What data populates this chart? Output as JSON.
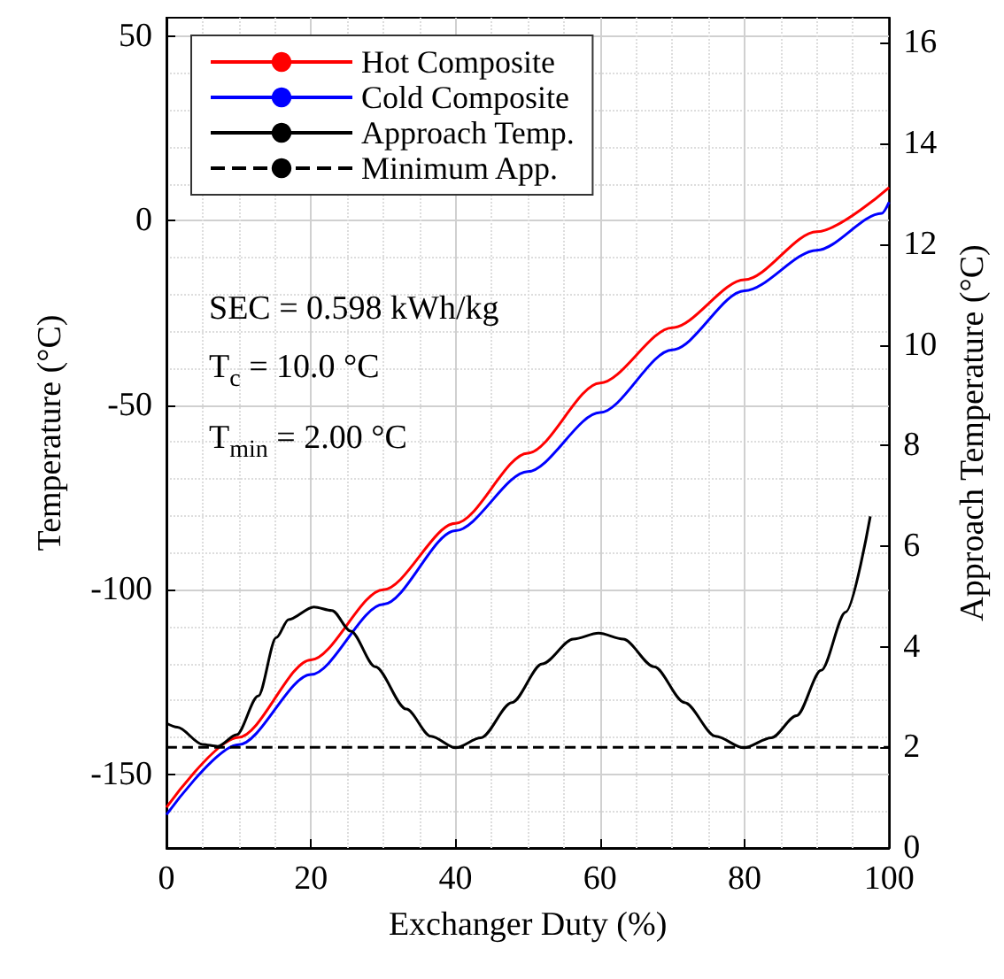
{
  "chart_data": {
    "type": "line",
    "xlabel": "Exchanger Duty (%)",
    "ylabel": "Temperature (°C)",
    "y2label": "Approach Temperature (°C)",
    "xlim": [
      0,
      100
    ],
    "xticks": [
      0,
      20,
      40,
      60,
      80,
      100
    ],
    "ylim": [
      -170,
      55
    ],
    "yticks": [
      -150,
      -100,
      -50,
      0,
      50
    ],
    "y2lim": [
      0,
      16.5
    ],
    "y2ticks": [
      0,
      2,
      4,
      6,
      8,
      10,
      12,
      14,
      16
    ],
    "grid": true,
    "legend": "top left",
    "marker": "none",
    "annotations": [
      "SEC = 0.598 kWh/kg",
      "T$_{c}$ =  10.0 °C",
      "T$_{min}$ =  2.00 °C"
    ],
    "series": [
      {
        "name": "Hot Composite",
        "color": "#ff0000",
        "x": [
          0,
          10,
          20,
          30,
          40,
          50,
          60,
          70,
          80,
          90,
          100
        ],
        "values": [
          -159,
          -140,
          -119,
          -100,
          -82,
          -63,
          -44,
          -29,
          -16,
          -3,
          9
        ]
      },
      {
        "name": "Cold Composite",
        "color": "#0000ff",
        "x": [
          0,
          10,
          20,
          30,
          40,
          50,
          60,
          70,
          80,
          90,
          99,
          100
        ],
        "values": [
          -161,
          -142,
          -123,
          -104,
          -84,
          -68,
          -52,
          -35,
          -19,
          -8,
          2,
          5
        ]
      },
      {
        "name": "Approach Temp.",
        "color": "#000000",
        "axis": "y2",
        "x": [
          0,
          1.5,
          5,
          7.1,
          9.7,
          12.7,
          15.2,
          16.9,
          20.4,
          22.9,
          25.5,
          28.9,
          33.2,
          36.6,
          40,
          43.5,
          47.8,
          52,
          56.3,
          59.8,
          63.2,
          67.5,
          71.7,
          76,
          79.9,
          83.7,
          87.2,
          90.6,
          94,
          97.4
        ],
        "values": [
          2.48,
          2.4,
          2.06,
          2.02,
          2.25,
          3.02,
          4.18,
          4.54,
          4.79,
          4.72,
          4.31,
          3.6,
          2.76,
          2.22,
          1.99,
          2.19,
          2.89,
          3.66,
          4.15,
          4.27,
          4.15,
          3.6,
          2.89,
          2.22,
          1.99,
          2.19,
          2.63,
          3.53,
          4.69,
          6.59
        ]
      },
      {
        "name": "Minimum App.",
        "color": "#000000",
        "axis": "y2",
        "line_style": "dashed",
        "x": [
          0,
          100
        ],
        "values": [
          2,
          2
        ]
      }
    ]
  }
}
